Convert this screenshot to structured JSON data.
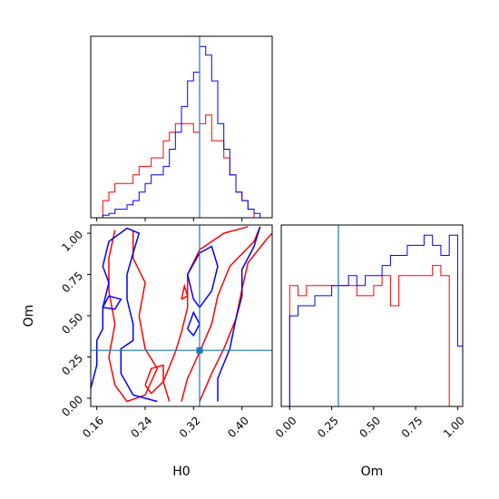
{
  "chart_data": {
    "type": "corner",
    "parameters": [
      "H0",
      "Om"
    ],
    "truth": {
      "H0": 0.33,
      "Om": 0.29
    },
    "colors": {
      "red": "#ff0000",
      "blue": "#0000ff",
      "truth": "#1f77b4"
    },
    "series": [
      {
        "color": "red"
      },
      {
        "color": "blue"
      }
    ],
    "panels": {
      "h0_hist": {
        "xlim": [
          0.15,
          0.45
        ],
        "bin_edges": [
          0.15,
          0.16,
          0.17,
          0.18,
          0.19,
          0.2,
          0.21,
          0.22,
          0.23,
          0.24,
          0.25,
          0.26,
          0.27,
          0.28,
          0.29,
          0.3,
          0.31,
          0.32,
          0.33,
          0.34,
          0.35,
          0.36,
          0.37,
          0.38,
          0.39,
          0.4,
          0.41,
          0.42,
          0.43,
          0.44,
          0.45
        ],
        "red": [
          0,
          0,
          2,
          3,
          4,
          4,
          4,
          5,
          6,
          6,
          7,
          7,
          9,
          10,
          11,
          11,
          11,
          10,
          11,
          12,
          9,
          9,
          7,
          5,
          3,
          2,
          1,
          0,
          0,
          0
        ],
        "blue": [
          0,
          0,
          0.3,
          0.5,
          1,
          1,
          1.5,
          2,
          3,
          4,
          5,
          5,
          6,
          8,
          10,
          13,
          16,
          17,
          20,
          19,
          16,
          11,
          8,
          5,
          3,
          2,
          1,
          0.5,
          0,
          0
        ],
        "ticks": [
          0.16,
          0.24,
          0.32,
          0.4
        ],
        "tick_labels": [
          "",
          "",
          "",
          ""
        ]
      },
      "om_hist": {
        "xlim": [
          -0.05,
          1.03
        ],
        "bin_edges": [
          -0.05,
          0.0,
          0.05,
          0.1,
          0.15,
          0.2,
          0.25,
          0.3,
          0.35,
          0.4,
          0.45,
          0.5,
          0.55,
          0.6,
          0.65,
          0.7,
          0.75,
          0.8,
          0.85,
          0.9,
          0.95,
          1.0,
          1.03
        ],
        "red": [
          0,
          6,
          5.5,
          6,
          6,
          6,
          6,
          6,
          6,
          5.5,
          5.5,
          6,
          6.5,
          5,
          6.5,
          6.5,
          6.5,
          6.5,
          7,
          6.5,
          0,
          0
        ],
        "blue": [
          0,
          4.5,
          5,
          5,
          5.5,
          5.5,
          6,
          6,
          6.5,
          6,
          6.5,
          6.5,
          7,
          7.5,
          7.5,
          8,
          8,
          8.5,
          8,
          7.5,
          8.5,
          3
        ],
        "ticks": [
          0.0,
          0.25,
          0.5,
          0.75,
          1.0
        ],
        "tick_labels": [
          "0.00",
          "0.25",
          "0.50",
          "0.75",
          "1.00"
        ],
        "xlabel": "Om"
      },
      "scatter": {
        "xlim": [
          0.15,
          0.45
        ],
        "ylim": [
          -0.05,
          1.05
        ],
        "xticks": [
          0.16,
          0.24,
          0.32,
          0.4
        ],
        "xtick_labels": [
          "0.16",
          "0.24",
          "0.32",
          "0.40"
        ],
        "yticks": [
          0.0,
          0.25,
          0.5,
          0.75,
          1.0
        ],
        "ytick_labels": [
          "0.00",
          "0.25",
          "0.50",
          "0.75",
          "1.00"
        ],
        "xlabel": "H0",
        "ylabel": "Om",
        "contours": {
          "red": [
            [
              [
                0.19,
                1.02
              ],
              [
                0.18,
                0.85
              ],
              [
                0.18,
                0.65
              ],
              [
                0.19,
                0.45
              ],
              [
                0.18,
                0.25
              ],
              [
                0.19,
                0.08
              ],
              [
                0.21,
                -0.02
              ],
              [
                0.24,
                0.02
              ],
              [
                0.26,
                0.18
              ],
              [
                0.24,
                0.3
              ],
              [
                0.23,
                0.5
              ],
              [
                0.24,
                0.7
              ],
              [
                0.22,
                0.85
              ],
              [
                0.22,
                1.02
              ]
            ],
            [
              [
                0.28,
                -0.02
              ],
              [
                0.27,
                0.1
              ],
              [
                0.29,
                0.28
              ],
              [
                0.3,
                0.4
              ],
              [
                0.31,
                0.55
              ],
              [
                0.31,
                0.75
              ],
              [
                0.33,
                0.9
              ],
              [
                0.37,
                1.0
              ],
              [
                0.41,
                1.04
              ]
            ],
            [
              [
                0.3,
                -0.02
              ],
              [
                0.31,
                0.12
              ],
              [
                0.33,
                0.28
              ],
              [
                0.35,
                0.45
              ],
              [
                0.36,
                0.62
              ],
              [
                0.38,
                0.8
              ],
              [
                0.42,
                0.95
              ],
              [
                0.43,
                1.04
              ]
            ],
            [
              [
                0.33,
                -0.02
              ],
              [
                0.35,
                0.15
              ],
              [
                0.37,
                0.3
              ],
              [
                0.39,
                0.48
              ],
              [
                0.4,
                0.66
              ],
              [
                0.41,
                0.82
              ],
              [
                0.44,
                0.96
              ],
              [
                0.45,
                1.0
              ]
            ],
            [
              [
                0.24,
                0.08
              ],
              [
                0.25,
                0.18
              ],
              [
                0.27,
                0.2
              ],
              [
                0.27,
                0.1
              ],
              [
                0.25,
                0.03
              ],
              [
                0.24,
                0.08
              ]
            ],
            [
              [
                0.3,
                0.6
              ],
              [
                0.305,
                0.68
              ],
              [
                0.31,
                0.62
              ],
              [
                0.3,
                0.6
              ]
            ]
          ],
          "blue": [
            [
              [
                0.15,
                0.06
              ],
              [
                0.16,
                0.2
              ],
              [
                0.16,
                0.35
              ],
              [
                0.17,
                0.42
              ],
              [
                0.17,
                0.55
              ],
              [
                0.18,
                0.7
              ],
              [
                0.17,
                0.8
              ],
              [
                0.18,
                0.95
              ],
              [
                0.21,
                1.03
              ],
              [
                0.23,
                1.0
              ],
              [
                0.22,
                0.88
              ],
              [
                0.21,
                0.75
              ],
              [
                0.21,
                0.6
              ],
              [
                0.22,
                0.45
              ],
              [
                0.22,
                0.35
              ],
              [
                0.2,
                0.3
              ],
              [
                0.2,
                0.15
              ],
              [
                0.22,
                0.02
              ],
              [
                0.26,
                -0.02
              ]
            ],
            [
              [
                0.36,
                -0.02
              ],
              [
                0.36,
                0.12
              ],
              [
                0.38,
                0.3
              ],
              [
                0.39,
                0.48
              ],
              [
                0.4,
                0.62
              ],
              [
                0.4,
                0.78
              ],
              [
                0.42,
                0.92
              ],
              [
                0.43,
                1.04
              ]
            ],
            [
              [
                0.32,
                0.6
              ],
              [
                0.31,
                0.75
              ],
              [
                0.33,
                0.88
              ],
              [
                0.35,
                0.92
              ],
              [
                0.36,
                0.8
              ],
              [
                0.35,
                0.65
              ],
              [
                0.33,
                0.55
              ],
              [
                0.32,
                0.6
              ]
            ],
            [
              [
                0.31,
                0.42
              ],
              [
                0.32,
                0.52
              ],
              [
                0.33,
                0.45
              ],
              [
                0.32,
                0.38
              ],
              [
                0.31,
                0.42
              ]
            ],
            [
              [
                0.17,
                0.55
              ],
              [
                0.18,
                0.62
              ],
              [
                0.2,
                0.6
              ],
              [
                0.19,
                0.54
              ],
              [
                0.17,
                0.55
              ]
            ]
          ]
        }
      }
    }
  }
}
